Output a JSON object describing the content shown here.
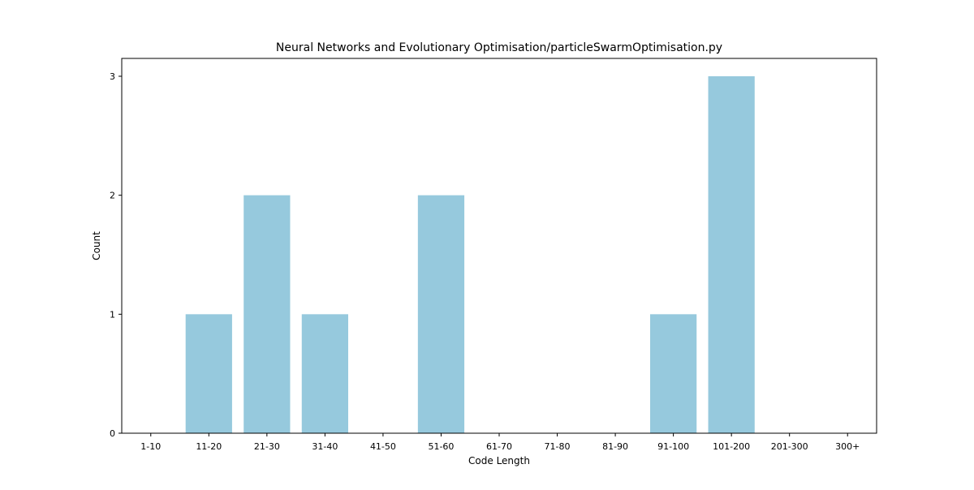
{
  "chart_data": {
    "type": "bar",
    "title": "Neural Networks and Evolutionary Optimisation/particleSwarmOptimisation.py",
    "xlabel": "Code Length",
    "ylabel": "Count",
    "categories": [
      "1-10",
      "11-20",
      "21-30",
      "31-40",
      "41-50",
      "51-60",
      "61-70",
      "71-80",
      "81-90",
      "91-100",
      "101-200",
      "201-300",
      "300+"
    ],
    "values": [
      0,
      1,
      2,
      1,
      0,
      2,
      0,
      0,
      0,
      1,
      3,
      0,
      0
    ],
    "ylim": [
      0,
      3.15
    ],
    "yticks": [
      0,
      1,
      2,
      3
    ],
    "grid": false,
    "bar_color": "#96c9dd"
  }
}
